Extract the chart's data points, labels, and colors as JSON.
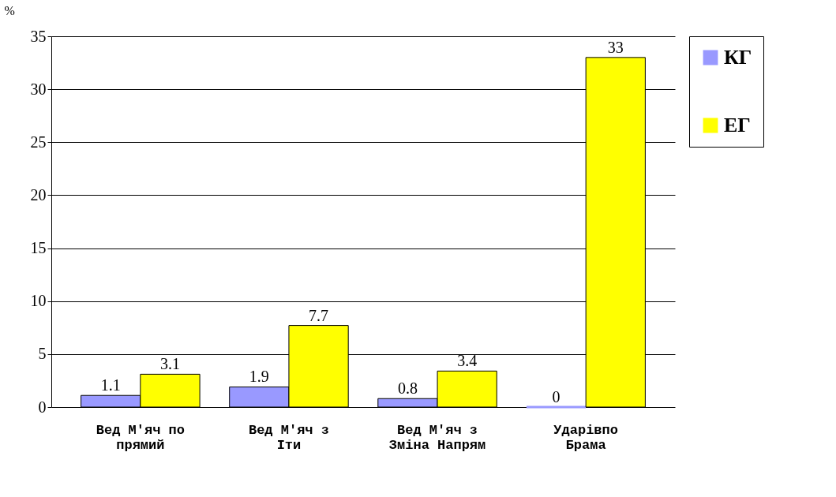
{
  "chart_data": {
    "type": "bar",
    "ylabel": "%",
    "categories": [
      "Вед М'яч по\nпрямий",
      "Вед М'яч з\nІти",
      "Вед М'яч з\nЗміна Напрям",
      "Ударівпо\nБрама"
    ],
    "series": [
      {
        "name": "КГ",
        "color": "#9999ff",
        "values": [
          1.1,
          1.9,
          0.8,
          0
        ]
      },
      {
        "name": "ЕГ",
        "color": "#ffff00",
        "values": [
          3.1,
          7.7,
          3.4,
          33
        ]
      }
    ],
    "ylim": [
      0,
      35
    ],
    "yticks": [
      0,
      5,
      10,
      15,
      20,
      25,
      30,
      35
    ],
    "grid": "y",
    "legend": "right",
    "data_labels": true
  }
}
